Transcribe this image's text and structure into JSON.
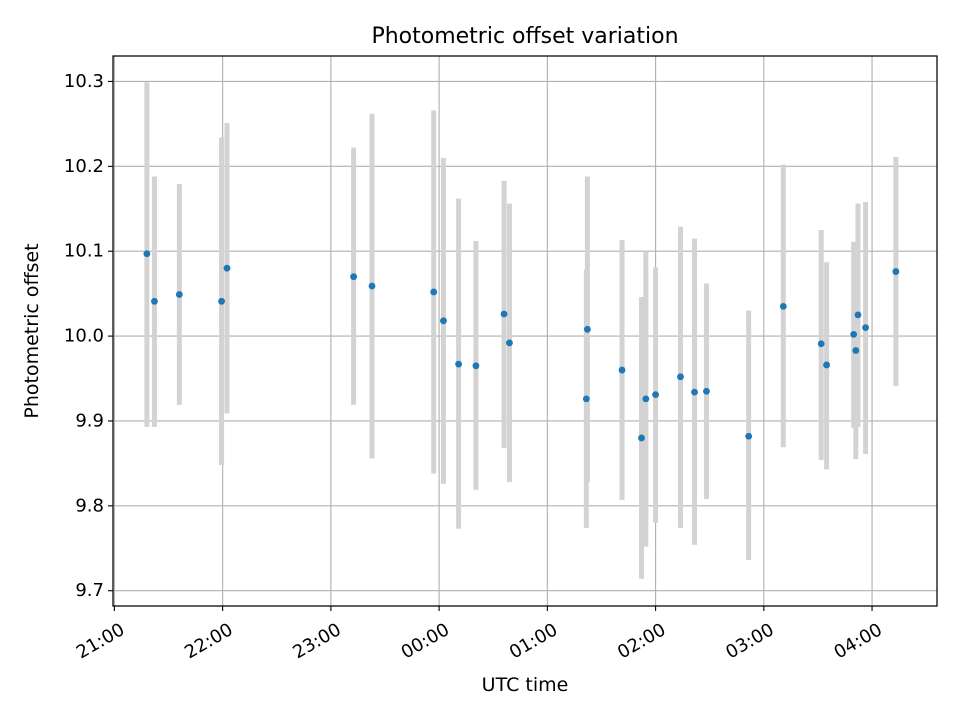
{
  "chart_data": {
    "type": "scatter",
    "title": "Photometric offset variation",
    "xlabel": "UTC time",
    "ylabel": "Photometric offset",
    "x_unit": "hours after 21:00 UTC",
    "xlim": [
      -0.013,
      7.6
    ],
    "ylim": [
      9.682,
      10.33
    ],
    "grid": true,
    "legend": "none",
    "x_ticks": [
      {
        "value": 0,
        "label": "21:00"
      },
      {
        "value": 1,
        "label": "22:00"
      },
      {
        "value": 2,
        "label": "23:00"
      },
      {
        "value": 3,
        "label": "00:00"
      },
      {
        "value": 4,
        "label": "01:00"
      },
      {
        "value": 5,
        "label": "02:00"
      },
      {
        "value": 6,
        "label": "03:00"
      },
      {
        "value": 7,
        "label": "04:00"
      }
    ],
    "y_ticks": [
      {
        "value": 9.7,
        "label": "9.7"
      },
      {
        "value": 9.8,
        "label": "9.8"
      },
      {
        "value": 9.9,
        "label": "9.9"
      },
      {
        "value": 10.0,
        "label": "10.0"
      },
      {
        "value": 10.1,
        "label": "10.1"
      },
      {
        "value": 10.2,
        "label": "10.2"
      },
      {
        "value": 10.3,
        "label": "10.3"
      }
    ],
    "colors": {
      "marker": "#1f77b4",
      "errorbar": "#d3d3d3",
      "grid": "#b0b0b0"
    },
    "points": [
      {
        "x": 0.3,
        "y": 10.097,
        "lo": 9.893,
        "hi": 10.299
      },
      {
        "x": 0.37,
        "y": 10.041,
        "lo": 9.893,
        "hi": 10.188
      },
      {
        "x": 0.6,
        "y": 10.049,
        "lo": 9.919,
        "hi": 10.179
      },
      {
        "x": 0.99,
        "y": 10.041,
        "lo": 9.848,
        "hi": 10.234
      },
      {
        "x": 1.04,
        "y": 10.08,
        "lo": 9.909,
        "hi": 10.251
      },
      {
        "x": 2.21,
        "y": 10.07,
        "lo": 9.919,
        "hi": 10.222
      },
      {
        "x": 2.38,
        "y": 10.059,
        "lo": 9.856,
        "hi": 10.262
      },
      {
        "x": 2.95,
        "y": 10.052,
        "lo": 9.838,
        "hi": 10.266
      },
      {
        "x": 3.04,
        "y": 10.018,
        "lo": 9.826,
        "hi": 10.21
      },
      {
        "x": 3.18,
        "y": 9.967,
        "lo": 9.773,
        "hi": 10.162
      },
      {
        "x": 3.34,
        "y": 9.965,
        "lo": 9.819,
        "hi": 10.112
      },
      {
        "x": 3.6,
        "y": 10.026,
        "lo": 9.868,
        "hi": 10.183
      },
      {
        "x": 3.65,
        "y": 9.992,
        "lo": 9.828,
        "hi": 10.156
      },
      {
        "x": 4.36,
        "y": 9.926,
        "lo": 9.774,
        "hi": 10.078
      },
      {
        "x": 4.37,
        "y": 10.008,
        "lo": 9.828,
        "hi": 10.188
      },
      {
        "x": 4.69,
        "y": 9.96,
        "lo": 9.807,
        "hi": 10.113
      },
      {
        "x": 4.87,
        "y": 9.88,
        "lo": 9.714,
        "hi": 10.046
      },
      {
        "x": 4.91,
        "y": 9.926,
        "lo": 9.752,
        "hi": 10.1
      },
      {
        "x": 5.0,
        "y": 9.931,
        "lo": 9.78,
        "hi": 10.081
      },
      {
        "x": 5.23,
        "y": 9.952,
        "lo": 9.774,
        "hi": 10.129
      },
      {
        "x": 5.36,
        "y": 9.934,
        "lo": 9.754,
        "hi": 10.115
      },
      {
        "x": 5.47,
        "y": 9.935,
        "lo": 9.808,
        "hi": 10.062
      },
      {
        "x": 5.86,
        "y": 9.882,
        "lo": 9.736,
        "hi": 10.03
      },
      {
        "x": 6.18,
        "y": 10.035,
        "lo": 9.869,
        "hi": 10.202
      },
      {
        "x": 6.53,
        "y": 9.991,
        "lo": 9.854,
        "hi": 10.125
      },
      {
        "x": 6.58,
        "y": 9.966,
        "lo": 9.843,
        "hi": 10.087
      },
      {
        "x": 6.83,
        "y": 10.002,
        "lo": 9.892,
        "hi": 10.111
      },
      {
        "x": 6.85,
        "y": 9.983,
        "lo": 9.855,
        "hi": 10.111
      },
      {
        "x": 6.87,
        "y": 10.025,
        "lo": 9.893,
        "hi": 10.156
      },
      {
        "x": 6.94,
        "y": 10.01,
        "lo": 9.861,
        "hi": 10.158
      },
      {
        "x": 7.22,
        "y": 10.076,
        "lo": 9.941,
        "hi": 10.211
      }
    ]
  }
}
